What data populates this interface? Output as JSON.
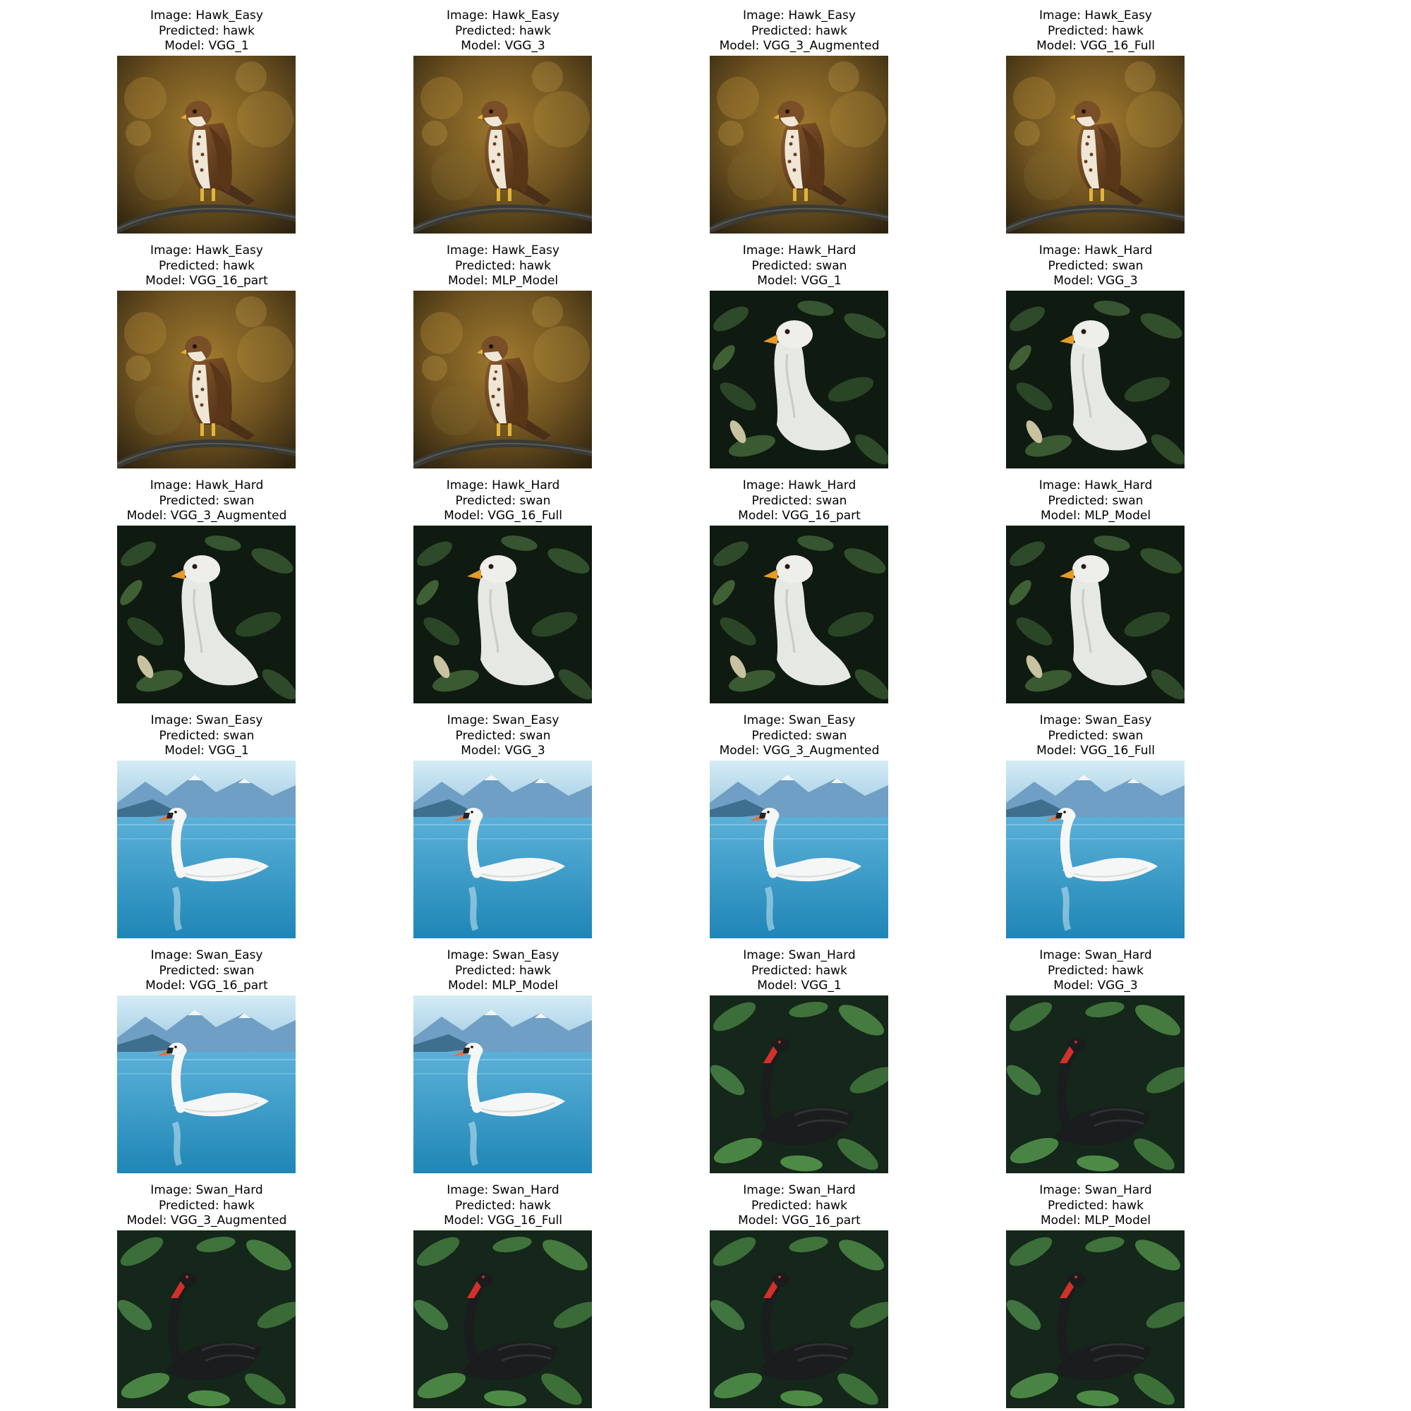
{
  "labels": {
    "image": "Image: ",
    "predicted": "Predicted: ",
    "model": "Model: "
  },
  "scenes": {
    "hawk_easy": {
      "description": "brown hawk perched on a branch, warm blurred autumn background"
    },
    "hawk_hard": {
      "description": "white bird head and neck among dark green leaves"
    },
    "swan_easy": {
      "description": "white swan on blue lake with mountains"
    },
    "swan_hard": {
      "description": "black swan with red beak among green leaves"
    }
  },
  "panels": [
    {
      "image": "Hawk_Easy",
      "predicted": "hawk",
      "model": "VGG_1",
      "scene": "hawk_easy"
    },
    {
      "image": "Hawk_Easy",
      "predicted": "hawk",
      "model": "VGG_3",
      "scene": "hawk_easy"
    },
    {
      "image": "Hawk_Easy",
      "predicted": "hawk",
      "model": "VGG_3_Augmented",
      "scene": "hawk_easy"
    },
    {
      "image": "Hawk_Easy",
      "predicted": "hawk",
      "model": "VGG_16_Full",
      "scene": "hawk_easy"
    },
    {
      "image": "Hawk_Easy",
      "predicted": "hawk",
      "model": "VGG_16_part",
      "scene": "hawk_easy"
    },
    {
      "image": "Hawk_Easy",
      "predicted": "hawk",
      "model": "MLP_Model",
      "scene": "hawk_easy"
    },
    {
      "image": "Hawk_Hard",
      "predicted": "swan",
      "model": "VGG_1",
      "scene": "hawk_hard"
    },
    {
      "image": "Hawk_Hard",
      "predicted": "swan",
      "model": "VGG_3",
      "scene": "hawk_hard"
    },
    {
      "image": "Hawk_Hard",
      "predicted": "swan",
      "model": "VGG_3_Augmented",
      "scene": "hawk_hard"
    },
    {
      "image": "Hawk_Hard",
      "predicted": "swan",
      "model": "VGG_16_Full",
      "scene": "hawk_hard"
    },
    {
      "image": "Hawk_Hard",
      "predicted": "swan",
      "model": "VGG_16_part",
      "scene": "hawk_hard"
    },
    {
      "image": "Hawk_Hard",
      "predicted": "swan",
      "model": "MLP_Model",
      "scene": "hawk_hard"
    },
    {
      "image": "Swan_Easy",
      "predicted": "swan",
      "model": "VGG_1",
      "scene": "swan_easy"
    },
    {
      "image": "Swan_Easy",
      "predicted": "swan",
      "model": "VGG_3",
      "scene": "swan_easy"
    },
    {
      "image": "Swan_Easy",
      "predicted": "swan",
      "model": "VGG_3_Augmented",
      "scene": "swan_easy"
    },
    {
      "image": "Swan_Easy",
      "predicted": "swan",
      "model": "VGG_16_Full",
      "scene": "swan_easy"
    },
    {
      "image": "Swan_Easy",
      "predicted": "swan",
      "model": "VGG_16_part",
      "scene": "swan_easy"
    },
    {
      "image": "Swan_Easy",
      "predicted": "hawk",
      "model": "MLP_Model",
      "scene": "swan_easy"
    },
    {
      "image": "Swan_Hard",
      "predicted": "hawk",
      "model": "VGG_1",
      "scene": "swan_hard"
    },
    {
      "image": "Swan_Hard",
      "predicted": "hawk",
      "model": "VGG_3",
      "scene": "swan_hard"
    },
    {
      "image": "Swan_Hard",
      "predicted": "hawk",
      "model": "VGG_3_Augmented",
      "scene": "swan_hard"
    },
    {
      "image": "Swan_Hard",
      "predicted": "hawk",
      "model": "VGG_16_Full",
      "scene": "swan_hard"
    },
    {
      "image": "Swan_Hard",
      "predicted": "hawk",
      "model": "VGG_16_part",
      "scene": "swan_hard"
    },
    {
      "image": "Swan_Hard",
      "predicted": "hawk",
      "model": "MLP_Model",
      "scene": "swan_hard"
    }
  ]
}
